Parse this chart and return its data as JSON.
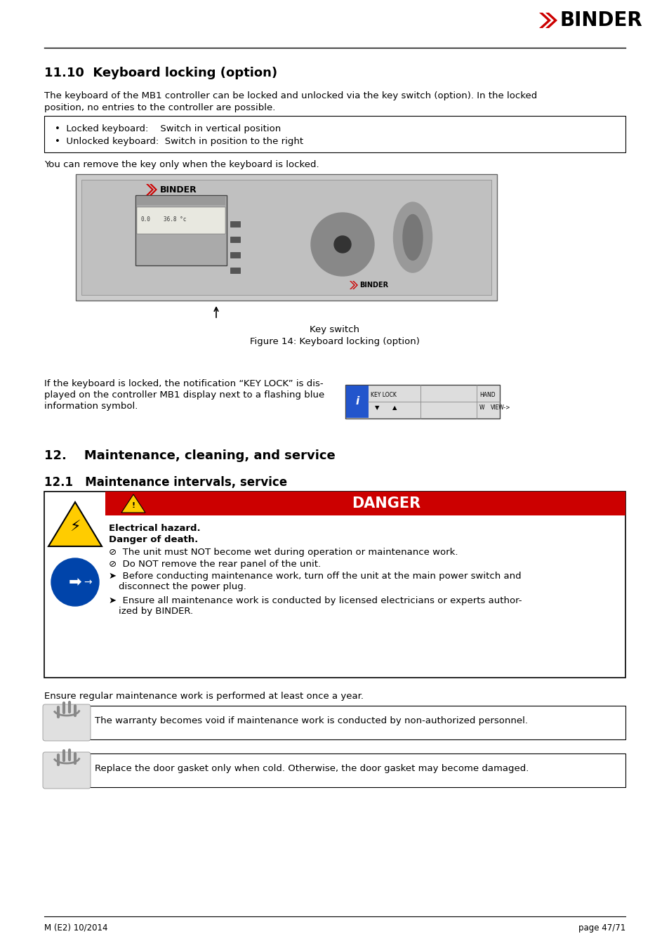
{
  "title": "11.10  Keyboard locking (option)",
  "section12_title": "12.    Maintenance, cleaning, and service",
  "section12_1_title": "12.1   Maintenance intervals, service",
  "footer_left": "M (E2) 10/2014",
  "footer_right": "page 47/71",
  "body_text_1a": "The keyboard of the MB1 controller can be locked and unlocked via the key switch (option). In the locked",
  "body_text_1b": "position, no entries to the controller are possible.",
  "bullet1": "•  Locked keyboard:    Switch in vertical position",
  "bullet2": "•  Unlocked keyboard:  Switch in position to the right",
  "body_text_2": "You can remove the key only when the keyboard is locked.",
  "figure_caption1": "Key switch",
  "figure_caption2": "Figure 14: Keyboard locking (option)",
  "keylock_text_1": "If the keyboard is locked, the notification “KEY LOCK” is dis-",
  "keylock_text_2": "played on the controller MB1 display next to a flashing blue",
  "keylock_text_3": "information symbol.",
  "danger_title": "DANGER",
  "danger_sub1": "Electrical hazard.",
  "danger_sub2": "Danger of death.",
  "danger_b1": "⊘  The unit must NOT become wet during operation or maintenance work.",
  "danger_b2": "⊘  Do NOT remove the rear panel of the unit.",
  "danger_b3a": "➤  Before conducting maintenance work, turn off the unit at the main power switch and",
  "danger_b3b": "    disconnect the power plug.",
  "danger_b4a": "➤  Ensure all maintenance work is conducted by licensed electricians or experts author-",
  "danger_b4b": "    ized by BINDER.",
  "ensure_text": "Ensure regular maintenance work is performed at least once a year.",
  "info_text1": "The warranty becomes void if maintenance work is conducted by non-authorized personnel.",
  "info_text2": "Replace the door gasket only when cold. Otherwise, the door gasket may become damaged.",
  "bg_color": "#ffffff",
  "danger_red": "#cc0000",
  "body_font_size": 9.5,
  "heading_font_size": 13,
  "section_heading_font_size": 13
}
